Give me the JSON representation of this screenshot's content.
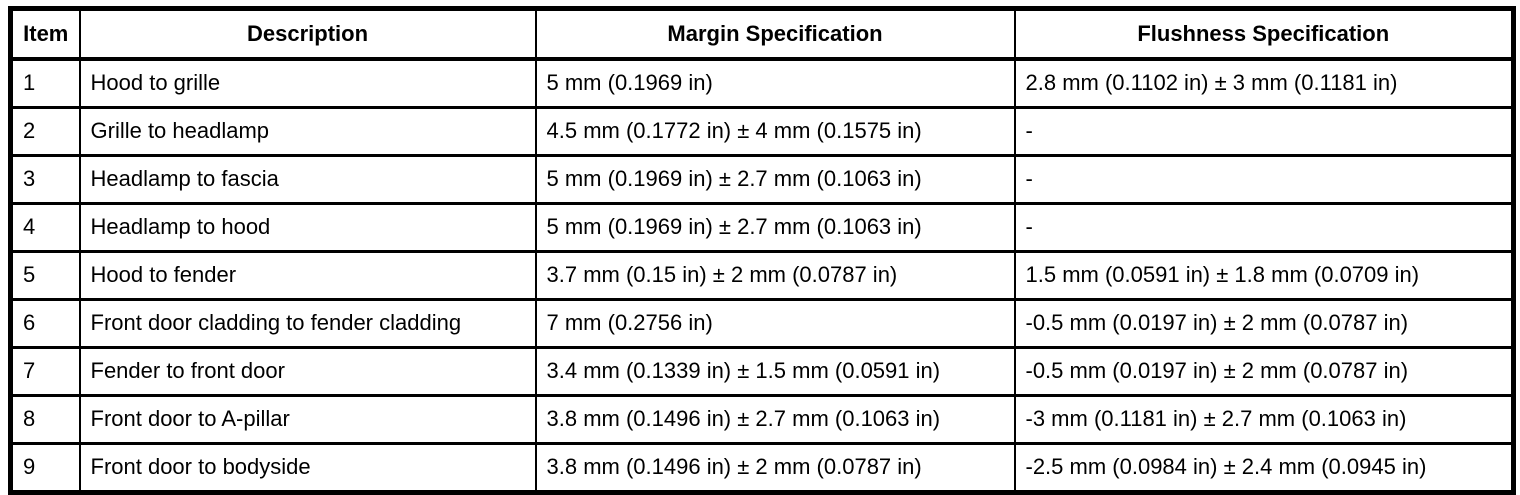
{
  "table": {
    "colors": {
      "border": "#000000",
      "background": "#ffffff",
      "text": "#000000"
    },
    "columns": [
      {
        "key": "item",
        "label": "Item"
      },
      {
        "key": "description",
        "label": "Description"
      },
      {
        "key": "margin",
        "label": "Margin Specification"
      },
      {
        "key": "flushness",
        "label": "Flushness Specification"
      }
    ],
    "rows": [
      {
        "item": "1",
        "description": "Hood to grille",
        "margin": "5 mm (0.1969 in)",
        "flushness": "2.8 mm (0.1102 in) ± 3 mm (0.1181 in)"
      },
      {
        "item": "2",
        "description": "Grille to headlamp",
        "margin": "4.5 mm (0.1772 in) ± 4 mm (0.1575 in)",
        "flushness": "-"
      },
      {
        "item": "3",
        "description": "Headlamp to fascia",
        "margin": "5 mm (0.1969 in) ± 2.7 mm (0.1063 in)",
        "flushness": "-"
      },
      {
        "item": "4",
        "description": "Headlamp to hood",
        "margin": "5 mm (0.1969 in) ± 2.7 mm (0.1063 in)",
        "flushness": "-"
      },
      {
        "item": "5",
        "description": "Hood to fender",
        "margin": "3.7 mm (0.15 in) ± 2 mm (0.0787 in)",
        "flushness": "1.5 mm (0.0591 in) ± 1.8 mm (0.0709 in)"
      },
      {
        "item": "6",
        "description": "Front door cladding to fender cladding",
        "margin": "7 mm (0.2756 in)",
        "flushness": "-0.5 mm (0.0197 in) ± 2 mm (0.0787 in)"
      },
      {
        "item": "7",
        "description": "Fender to front door",
        "margin": "3.4 mm (0.1339 in) ± 1.5 mm (0.0591 in)",
        "flushness": "-0.5 mm (0.0197 in) ± 2 mm (0.0787 in)"
      },
      {
        "item": "8",
        "description": "Front door to A-pillar",
        "margin": "3.8 mm (0.1496 in) ± 2.7 mm (0.1063 in)",
        "flushness": "-3 mm (0.1181 in) ± 2.7 mm (0.1063 in)"
      },
      {
        "item": "9",
        "description": "Front door to bodyside",
        "margin": "3.8 mm (0.1496 in) ± 2 mm (0.0787 in)",
        "flushness": "-2.5 mm (0.0984 in) ± 2.4 mm (0.0945 in)"
      }
    ]
  }
}
